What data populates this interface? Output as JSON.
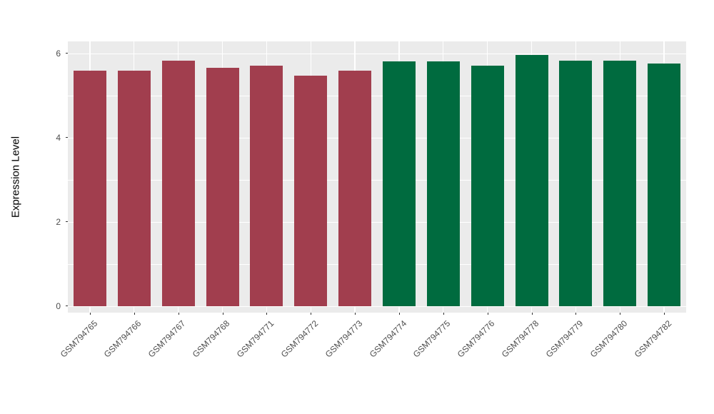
{
  "chart_data": {
    "type": "bar",
    "title": "",
    "xlabel": "",
    "ylabel": "Expression Level",
    "ylim": [
      0,
      6.2
    ],
    "yticks": [
      0,
      2,
      4,
      6
    ],
    "yminor": [
      1,
      3,
      5
    ],
    "legend": "none",
    "panel_bg": "#EBEBEB",
    "grid_color": "#FFFFFF",
    "axis_text_color": "#4D4D4D",
    "groups": [
      {
        "name": "group-red",
        "color": "#A13E4E"
      },
      {
        "name": "group-green",
        "color": "#006B3F"
      }
    ],
    "bars": [
      {
        "label": "GSM794765",
        "value": 5.58,
        "group": 0
      },
      {
        "label": "GSM794766",
        "value": 5.58,
        "group": 0
      },
      {
        "label": "GSM794767",
        "value": 5.83,
        "group": 0
      },
      {
        "label": "GSM794768",
        "value": 5.65,
        "group": 0
      },
      {
        "label": "GSM794771",
        "value": 5.7,
        "group": 0
      },
      {
        "label": "GSM794772",
        "value": 5.46,
        "group": 0
      },
      {
        "label": "GSM794773",
        "value": 5.58,
        "group": 0
      },
      {
        "label": "GSM794774",
        "value": 5.8,
        "group": 1
      },
      {
        "label": "GSM794775",
        "value": 5.8,
        "group": 1
      },
      {
        "label": "GSM794776",
        "value": 5.7,
        "group": 1
      },
      {
        "label": "GSM794778",
        "value": 5.95,
        "group": 1
      },
      {
        "label": "GSM794779",
        "value": 5.82,
        "group": 1
      },
      {
        "label": "GSM794780",
        "value": 5.82,
        "group": 1
      },
      {
        "label": "GSM794782",
        "value": 5.75,
        "group": 1
      }
    ]
  }
}
